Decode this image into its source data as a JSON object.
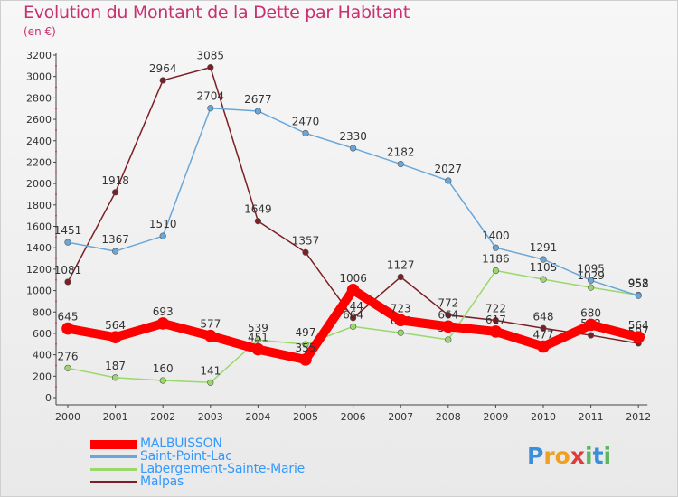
{
  "title": "Evolution du Montant de la Dette par Habitant",
  "subtitle": "(en €)",
  "logo": {
    "letters": [
      "P",
      "r",
      "o",
      "x",
      "i",
      "t",
      "i"
    ],
    "colors": [
      "#3a8fd8",
      "#f0a020",
      "#f0a020",
      "#e03a3a",
      "#5cb85c",
      "#3a8fd8",
      "#5cb85c"
    ]
  },
  "chart_data": {
    "type": "line",
    "x": [
      "2000",
      "2001",
      "2002",
      "2003",
      "2004",
      "2005",
      "2006",
      "2007",
      "2008",
      "2009",
      "2010",
      "2011",
      "2012"
    ],
    "ylim": [
      0,
      3200
    ],
    "yticks": [
      0,
      200,
      400,
      600,
      800,
      1000,
      1200,
      1400,
      1600,
      1800,
      2000,
      2200,
      2400,
      2600,
      2800,
      3000,
      3200
    ],
    "grid": false,
    "legend_position": "bottom",
    "series": [
      {
        "name": "Malpas",
        "color": "#7b1f24",
        "width": 1.5,
        "values": [
          1081,
          1918,
          2964,
          3085,
          1649,
          1357,
          744,
          1127,
          772,
          722,
          648,
          582,
          507
        ],
        "labels": [
          "1081",
          "1918",
          "2964",
          "3085",
          "1649",
          "1357",
          "744",
          "1127",
          "772",
          "722",
          "648",
          "582",
          "507"
        ]
      },
      {
        "name": "Labergement-Sainte-Marie",
        "color": "#9ad86a",
        "width": 1.5,
        "values": [
          276,
          187,
          160,
          141,
          539,
          497,
          664,
          606,
          541,
          1186,
          1105,
          1029,
          958
        ],
        "labels": [
          "276",
          "187",
          "160",
          "141",
          "539",
          "497",
          "664",
          "606",
          "541",
          "1186",
          "1105",
          "1029",
          "958"
        ]
      },
      {
        "name": "Saint-Point-Lac",
        "color": "#6aa7d8",
        "width": 1.5,
        "values": [
          1451,
          1367,
          1510,
          2704,
          2677,
          2470,
          2330,
          2182,
          2027,
          1400,
          1291,
          1095,
          952
        ],
        "labels": [
          "1451",
          "1367",
          "1510",
          "2704",
          "2677",
          "2470",
          "2330",
          "2182",
          "2027",
          "1400",
          "1291",
          "1095",
          "952"
        ]
      },
      {
        "name": "MALBUISSON",
        "color": "#ff0000",
        "width": 10,
        "values": [
          645,
          564,
          693,
          577,
          451,
          355,
          1006,
          723,
          664,
          617,
          477,
          680,
          564
        ],
        "labels": [
          "645",
          "564",
          "693",
          "577",
          "451",
          "355",
          "1006",
          "723",
          "664",
          "617",
          "477",
          "680",
          "564"
        ]
      }
    ],
    "legend_order": [
      "MALBUISSON",
      "Saint-Point-Lac",
      "Labergement-Sainte-Marie",
      "Malpas"
    ]
  }
}
